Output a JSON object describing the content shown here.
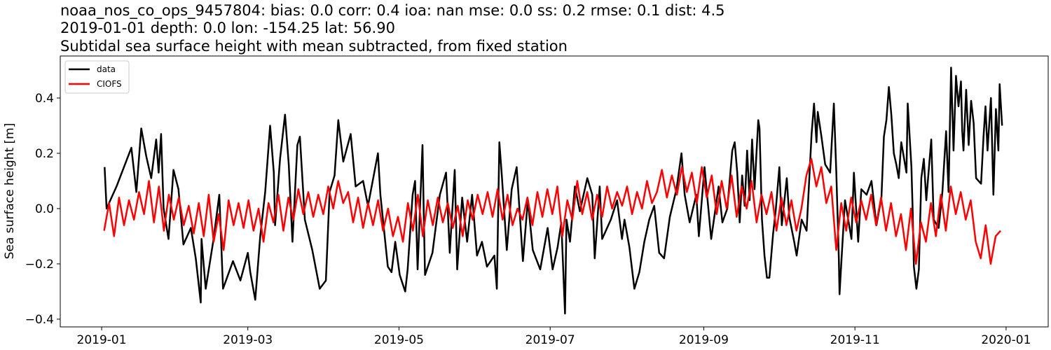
{
  "chart_data": {
    "type": "line",
    "title_lines": [
      "noaa_nos_co_ops_9457804: bias: 0.0  corr: 0.4  ioa: nan  mse: 0.0  ss: 0.2  rmse: 0.1  dist: 4.5",
      "2019-01-01 depth: 0.0 lon: -154.25 lat: 56.90",
      "Subtidal sea surface height with mean subtracted, from fixed station"
    ],
    "xlabel": "",
    "ylabel": "Sea surface height [m]",
    "x_units": "days since 2019-01-01",
    "xlim": [
      -16.7,
      382
    ],
    "ylim": [
      -0.428,
      0.552
    ],
    "grid": false,
    "legend_position": "top-left",
    "xticks": [
      {
        "day": 0,
        "label": "2019-01"
      },
      {
        "day": 59,
        "label": "2019-03"
      },
      {
        "day": 120,
        "label": "2019-05"
      },
      {
        "day": 181,
        "label": "2019-07"
      },
      {
        "day": 243,
        "label": "2019-09"
      },
      {
        "day": 304,
        "label": "2019-11"
      },
      {
        "day": 365,
        "label": "2020-01"
      }
    ],
    "yticks": [
      {
        "value": 0.4,
        "label": "0.4"
      },
      {
        "value": 0.2,
        "label": "0.2"
      },
      {
        "value": 0.0,
        "label": "0.0"
      },
      {
        "value": -0.2,
        "label": "−0.2"
      },
      {
        "value": -0.4,
        "label": "−0.4"
      }
    ],
    "series": [
      {
        "name": "data",
        "color": "#000000",
        "points": [
          [
            1.2,
            0.15
          ],
          [
            2,
            0.0
          ],
          [
            6,
            0.08
          ],
          [
            12,
            0.22
          ],
          [
            14,
            0.06
          ],
          [
            16,
            0.29
          ],
          [
            18,
            0.19
          ],
          [
            20,
            0.11
          ],
          [
            22,
            0.25
          ],
          [
            23,
            0.13
          ],
          [
            24,
            0.27
          ],
          [
            25,
            0.0
          ],
          [
            27,
            -0.11
          ],
          [
            29,
            0.14
          ],
          [
            31,
            0.07
          ],
          [
            33,
            -0.13
          ],
          [
            36,
            -0.07
          ],
          [
            38,
            -0.18
          ],
          [
            40,
            -0.34
          ],
          [
            40.3,
            -0.11
          ],
          [
            42,
            -0.29
          ],
          [
            45,
            -0.12
          ],
          [
            47.5,
            0.05
          ],
          [
            49,
            -0.29
          ],
          [
            53,
            -0.19
          ],
          [
            56,
            -0.26
          ],
          [
            59,
            -0.16
          ],
          [
            60,
            -0.23
          ],
          [
            62,
            -0.33
          ],
          [
            64,
            -0.1
          ],
          [
            66,
            0.06
          ],
          [
            68,
            0.3
          ],
          [
            69.5,
            0.13
          ],
          [
            70,
            -0.06
          ],
          [
            72,
            0.18
          ],
          [
            74,
            0.34
          ],
          [
            75.5,
            0.16
          ],
          [
            77,
            -0.12
          ],
          [
            79,
            0.23
          ],
          [
            80,
            0.26
          ],
          [
            82,
            -0.04
          ],
          [
            85,
            -0.15
          ],
          [
            88,
            -0.29
          ],
          [
            90.5,
            -0.26
          ],
          [
            92,
            0.06
          ],
          [
            94,
            0.12
          ],
          [
            95.5,
            0.32
          ],
          [
            97.5,
            0.17
          ],
          [
            100.5,
            0.27
          ],
          [
            102.5,
            0.08
          ],
          [
            105.5,
            0.1
          ],
          [
            107.5,
            0.01
          ],
          [
            111.5,
            0.2
          ],
          [
            112.5,
            0.05
          ],
          [
            115.5,
            -0.21
          ],
          [
            117,
            -0.23
          ],
          [
            118.5,
            -0.12
          ],
          [
            120.3,
            -0.24
          ],
          [
            122.5,
            -0.3
          ],
          [
            123.5,
            -0.22
          ],
          [
            125.5,
            0.05
          ],
          [
            126.5,
            0.1
          ],
          [
            127.5,
            -0.22
          ],
          [
            129.5,
            0.23
          ],
          [
            130,
            -0.02
          ],
          [
            130.5,
            -0.24
          ],
          [
            133.5,
            -0.16
          ],
          [
            136.5,
            0.05
          ],
          [
            139,
            0.13
          ],
          [
            140.5,
            -0.16
          ],
          [
            142.5,
            0.14
          ],
          [
            143.5,
            -0.22
          ],
          [
            145.5,
            0.04
          ],
          [
            147.5,
            -0.12
          ],
          [
            149.5,
            0.05
          ],
          [
            151.5,
            -0.17
          ],
          [
            153.5,
            -0.12
          ],
          [
            155.5,
            -0.21
          ],
          [
            158.5,
            -0.17
          ],
          [
            159.5,
            -0.29
          ],
          [
            160.5,
            0.24
          ],
          [
            161.5,
            0.12
          ],
          [
            163.5,
            -0.15
          ],
          [
            165.5,
            0.07
          ],
          [
            167.5,
            0.15
          ],
          [
            170,
            -0.19
          ],
          [
            172,
            0.03
          ],
          [
            174,
            -0.15
          ],
          [
            177,
            -0.22
          ],
          [
            180,
            -0.07
          ],
          [
            182,
            -0.22
          ],
          [
            184,
            -0.14
          ],
          [
            185.5,
            -0.05
          ],
          [
            187,
            -0.38
          ],
          [
            187.6,
            -0.04
          ],
          [
            189,
            -0.12
          ],
          [
            191,
            0.08
          ],
          [
            193,
            -0.01
          ],
          [
            196,
            0.11
          ],
          [
            198,
            0.05
          ],
          [
            199,
            -0.18
          ],
          [
            201,
            0.08
          ],
          [
            202,
            -0.11
          ],
          [
            205.5,
            -0.04
          ],
          [
            208,
            0.03
          ],
          [
            210,
            -0.11
          ],
          [
            211,
            -0.04
          ],
          [
            213,
            -0.14
          ],
          [
            215,
            -0.29
          ],
          [
            217,
            -0.23
          ],
          [
            219,
            -0.12
          ],
          [
            221,
            -0.04
          ],
          [
            223,
            0.01
          ],
          [
            225,
            -0.16
          ],
          [
            227,
            -0.18
          ],
          [
            229.3,
            -0.03
          ],
          [
            232,
            0.07
          ],
          [
            234,
            0.2
          ],
          [
            235.3,
            0.05
          ],
          [
            237.3,
            -0.05
          ],
          [
            240,
            0.05
          ],
          [
            241,
            -0.1
          ],
          [
            243.3,
            0.15
          ],
          [
            246,
            -0.11
          ],
          [
            249,
            0.08
          ],
          [
            250.5,
            -0.05
          ],
          [
            252.5,
            0.0
          ],
          [
            254.5,
            0.21
          ],
          [
            255.5,
            0.24
          ],
          [
            256.5,
            0.13
          ],
          [
            257.5,
            -0.05
          ],
          [
            258.5,
            0.12
          ],
          [
            259.5,
            0.01
          ],
          [
            260.5,
            0.21
          ],
          [
            261.5,
            0.03
          ],
          [
            262.5,
            0.25
          ],
          [
            263.5,
            0.07
          ],
          [
            265,
            0.32
          ],
          [
            265.5,
            0.29
          ],
          [
            266.5,
            -0.04
          ],
          [
            267.5,
            -0.17
          ],
          [
            268.5,
            -0.25
          ],
          [
            269.5,
            -0.25
          ],
          [
            271,
            -0.09
          ],
          [
            272,
            -0.01
          ],
          [
            273.5,
            0.15
          ],
          [
            274.5,
            -0.06
          ],
          [
            276.5,
            0.11
          ],
          [
            277.5,
            -0.03
          ],
          [
            279.5,
            -0.12
          ],
          [
            280.5,
            -0.17
          ],
          [
            282.5,
            -0.04
          ],
          [
            284.5,
            -0.08
          ],
          [
            286.5,
            0.27
          ],
          [
            287.5,
            0.38
          ],
          [
            288.5,
            0.24
          ],
          [
            289,
            0.35
          ],
          [
            290.5,
            0.26
          ],
          [
            292,
            0.16
          ],
          [
            294,
            0.13
          ],
          [
            295.5,
            0.38
          ],
          [
            296.5,
            0.13
          ],
          [
            297.5,
            -0.18
          ],
          [
            297.8,
            -0.31
          ],
          [
            298.6,
            -0.18
          ],
          [
            300,
            0.03
          ],
          [
            302.6,
            -0.11
          ],
          [
            303.6,
            0.13
          ],
          [
            305.3,
            -0.12
          ],
          [
            306.6,
            0.07
          ],
          [
            308.7,
            0.05
          ],
          [
            310.7,
            0.1
          ],
          [
            312.7,
            -0.06
          ],
          [
            314.7,
            0.04
          ],
          [
            315.7,
            0.26
          ],
          [
            316.7,
            0.32
          ],
          [
            317.7,
            0.44
          ],
          [
            318.7,
            0.34
          ],
          [
            319.7,
            0.2
          ],
          [
            320.7,
            0.16
          ],
          [
            321.7,
            0.11
          ],
          [
            322.7,
            0.24
          ],
          [
            324.8,
            0.13
          ],
          [
            325.3,
            0.38
          ],
          [
            326.8,
            0.15
          ],
          [
            327.3,
            -0.01
          ],
          [
            327.8,
            -0.21
          ],
          [
            328.8,
            -0.29
          ],
          [
            329.8,
            -0.22
          ],
          [
            330.8,
            0.11
          ],
          [
            331.8,
            0.18
          ],
          [
            332.8,
            0.03
          ],
          [
            334.8,
            0.25
          ],
          [
            335.8,
            -0.04
          ],
          [
            337.8,
            -0.07
          ],
          [
            339.3,
            0.06
          ],
          [
            340.8,
            0.28
          ],
          [
            341.8,
            0.06
          ],
          [
            342.8,
            0.51
          ],
          [
            343.8,
            0.21
          ],
          [
            344.8,
            0.48
          ],
          [
            345.8,
            0.37
          ],
          [
            346.8,
            0.46
          ],
          [
            347.3,
            0.28
          ],
          [
            347.8,
            0.21
          ],
          [
            348.9,
            0.43
          ],
          [
            349.9,
            0.23
          ],
          [
            350.9,
            0.39
          ],
          [
            351.9,
            0.31
          ],
          [
            352.9,
            0.11
          ],
          [
            354.9,
            0.09
          ],
          [
            355.9,
            0.26
          ],
          [
            356.7,
            0.37
          ],
          [
            357.5,
            0.21
          ],
          [
            358.9,
            0.4
          ],
          [
            359.9,
            0.05
          ],
          [
            360.9,
            0.36
          ],
          [
            361.9,
            0.21
          ],
          [
            362.4,
            0.45
          ],
          [
            363.4,
            0.3
          ]
        ]
      },
      {
        "name": "CIOFS",
        "color": "#ff0000",
        "x_start": 1,
        "x_step": 2.01,
        "values": [
          -0.08,
          0.02,
          -0.1,
          0.04,
          -0.06,
          0.03,
          -0.04,
          0.06,
          -0.02,
          0.1,
          -0.05,
          0.08,
          -0.08,
          0.05,
          -0.04,
          0.04,
          -0.06,
          0.01,
          -0.09,
          0.02,
          -0.1,
          0.05,
          -0.12,
          -0.02,
          -0.15,
          0.03,
          -0.06,
          0.02,
          -0.07,
          0.03,
          -0.08,
          0.0,
          -0.12,
          0.02,
          -0.05,
          0.05,
          -0.08,
          0.04,
          -0.04,
          0.07,
          -0.02,
          0.06,
          -0.03,
          0.05,
          -0.02,
          0.08,
          0.0,
          0.1,
          0.02,
          0.06,
          -0.05,
          0.04,
          -0.07,
          0.02,
          -0.06,
          0.03,
          -0.08,
          0.0,
          -0.1,
          -0.03,
          -0.12,
          0.02,
          -0.08,
          0.05,
          -0.1,
          0.03,
          -0.06,
          0.04,
          -0.05,
          0.02,
          -0.07,
          0.01,
          -0.1,
          0.03,
          -0.04,
          0.05,
          -0.02,
          0.06,
          -0.03,
          0.07,
          -0.04,
          0.05,
          -0.06,
          0.0,
          -0.04,
          0.04,
          -0.06,
          0.06,
          -0.03,
          0.07,
          -0.02,
          0.08,
          -0.1,
          0.03,
          -0.04,
          0.1,
          -0.02,
          0.06,
          -0.04,
          0.05,
          -0.03,
          0.08,
          0.0,
          0.06,
          0.01,
          0.08,
          -0.02,
          0.06,
          0.0,
          0.1,
          0.02,
          0.06,
          0.14,
          0.04,
          0.12,
          0.05,
          0.15,
          0.06,
          0.13,
          0.02,
          0.15,
          0.04,
          0.12,
          -0.02,
          0.1,
          0.0,
          0.12,
          -0.03,
          0.08,
          0.0,
          0.1,
          -0.05,
          0.05,
          -0.02,
          0.06,
          -0.08,
          0.04,
          -0.06,
          0.03,
          -0.08,
          0.0,
          0.12,
          0.18,
          0.08,
          0.15,
          0.02,
          0.08,
          -0.15,
          0.02,
          -0.08,
          0.04,
          -0.05,
          0.03,
          -0.04,
          0.05,
          -0.06,
          0.04,
          -0.08,
          0.02,
          -0.1,
          -0.02,
          -0.15,
          0.0,
          -0.2,
          -0.05,
          -0.12,
          0.02,
          -0.1,
          0.05,
          -0.08,
          0.08,
          -0.02,
          0.06,
          -0.04,
          0.03,
          -0.12,
          -0.18,
          -0.06,
          -0.2,
          -0.1,
          -0.08
        ]
      }
    ]
  }
}
